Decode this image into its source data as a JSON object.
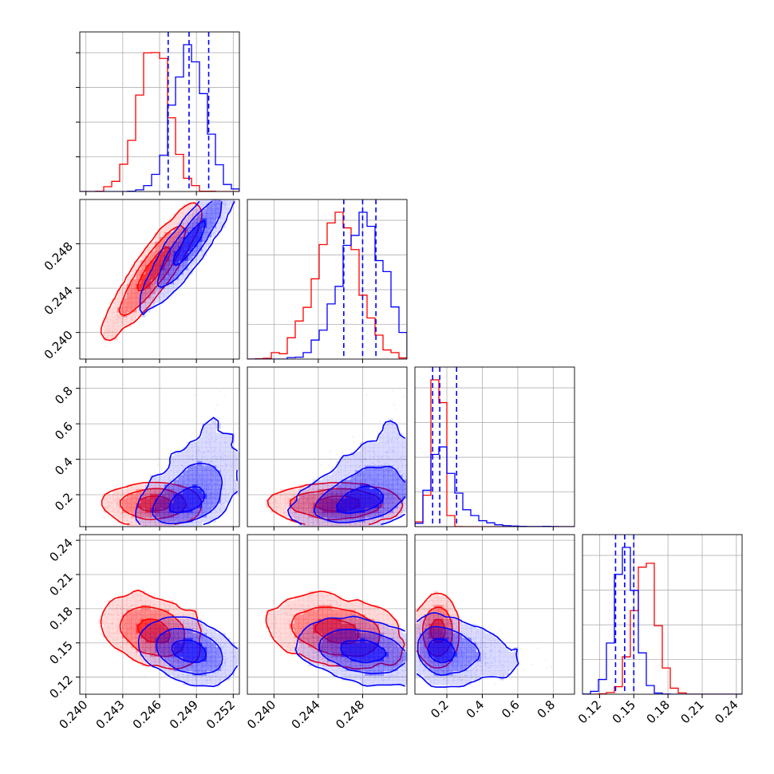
{
  "colors": {
    "red": "#ff0000",
    "blue": "#0000ff",
    "grid": "#b0b0b0",
    "frame": "#000000"
  },
  "chart_data": {
    "type": "corner",
    "parameters": 4,
    "grid": true,
    "ranges": [
      [
        0.2395,
        0.2525
      ],
      [
        0.2376,
        0.252
      ],
      [
        0.02,
        0.92
      ],
      [
        0.105,
        0.245
      ]
    ],
    "x_tick_labels": [
      [
        "0.240",
        "0.243",
        "0.246",
        "0.249",
        "0.252"
      ],
      [
        "0.240",
        "0.244",
        "0.248"
      ],
      [
        "0.2",
        "0.4",
        "0.6",
        "0.8"
      ],
      [
        "0.12",
        "0.15",
        "0.18",
        "0.21",
        "0.24"
      ]
    ],
    "y_tick_labels": {
      "row1": [
        "0.240",
        "0.244",
        "0.248"
      ],
      "row2": [
        "0.2",
        "0.4",
        "0.6",
        "0.8"
      ],
      "row3": [
        "0.12",
        "0.15",
        "0.18",
        "0.21",
        "0.24"
      ]
    },
    "series": [
      {
        "color": "red",
        "means": [
          0.2455,
          0.2457,
          0.15,
          0.16
        ],
        "sigmas": [
          0.0013,
          0.002,
          0.03,
          0.01
        ]
      },
      {
        "color": "blue",
        "means": [
          0.2484,
          0.248,
          0.2,
          0.143
        ],
        "sigmas": [
          0.0013,
          0.002,
          0.1,
          0.009
        ]
      }
    ],
    "quantile_lines": {
      "color": "blue",
      "style": "dashed",
      "values": [
        [
          0.2467,
          0.2484,
          0.25
        ],
        [
          0.2463,
          0.248,
          0.2492
        ],
        [
          0.12,
          0.16,
          0.255
        ],
        [
          0.134,
          0.142,
          0.15
        ]
      ]
    }
  }
}
